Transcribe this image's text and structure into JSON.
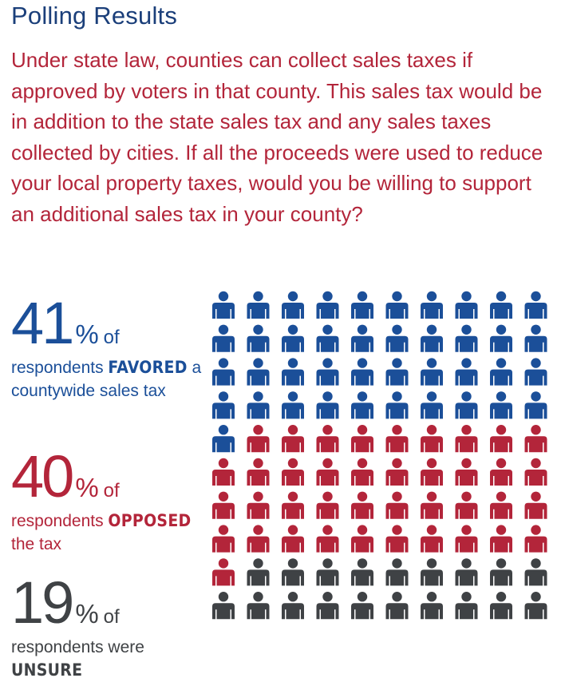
{
  "title": "Polling Results",
  "question": "Under state law, counties can collect sales taxes if approved by voters in that county. This sales tax would be in addition to the state sales tax and any sales taxes collected by cities. If all the proceeds were used to reduce your local property taxes, would you be willing to support an additional sales tax in your county?",
  "stats": {
    "favored": {
      "value": "41",
      "pct": "%",
      "of": "of",
      "pre": "respondents ",
      "emph": "FAVORED",
      "post": "a countywide sales tax"
    },
    "opposed": {
      "value": "40",
      "pct": "%",
      "of": "of",
      "pre": "respondents ",
      "emph": "OPPOSED",
      "post": "the tax"
    },
    "unsure": {
      "value": "19",
      "pct": "%",
      "of": "of",
      "pre": "respondents were",
      "emph": "UNSURE",
      "post": ""
    }
  },
  "colors": {
    "favored": "#1b4f99",
    "opposed": "#b3253a",
    "unsure": "#3f4245",
    "title": "#1b3f7a"
  },
  "chart_data": {
    "type": "pictogram",
    "icon": "person-icon",
    "rows": 10,
    "cols": 10,
    "total": 100,
    "categories": [
      "FAVORED",
      "OPPOSED",
      "UNSURE"
    ],
    "values": [
      41,
      40,
      19
    ],
    "colors": [
      "#1b4f99",
      "#b3253a",
      "#3f4245"
    ]
  }
}
